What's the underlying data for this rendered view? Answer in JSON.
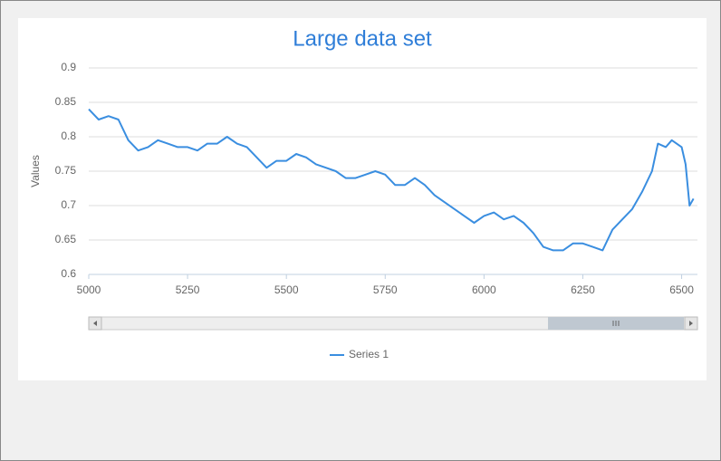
{
  "chart_data": {
    "type": "line",
    "title": "Large data set",
    "y_axis_label": "Values",
    "x": [
      5000,
      5025,
      5050,
      5075,
      5100,
      5125,
      5150,
      5175,
      5200,
      5225,
      5250,
      5275,
      5300,
      5325,
      5350,
      5375,
      5400,
      5425,
      5450,
      5475,
      5500,
      5525,
      5550,
      5575,
      5600,
      5625,
      5650,
      5675,
      5700,
      5725,
      5750,
      5775,
      5800,
      5825,
      5850,
      5875,
      5900,
      5925,
      5950,
      5975,
      6000,
      6025,
      6050,
      6075,
      6100,
      6125,
      6150,
      6175,
      6200,
      6225,
      6250,
      6275,
      6300,
      6325,
      6350,
      6375,
      6400,
      6425,
      6440,
      6460,
      6475,
      6500,
      6510,
      6520,
      6530
    ],
    "series": [
      {
        "name": "Series 1",
        "color": "#3a8ee0",
        "values": [
          0.84,
          0.825,
          0.83,
          0.825,
          0.795,
          0.78,
          0.785,
          0.795,
          0.79,
          0.785,
          0.785,
          0.78,
          0.79,
          0.79,
          0.8,
          0.79,
          0.785,
          0.77,
          0.755,
          0.765,
          0.765,
          0.775,
          0.77,
          0.76,
          0.755,
          0.75,
          0.74,
          0.74,
          0.745,
          0.75,
          0.745,
          0.73,
          0.73,
          0.74,
          0.73,
          0.715,
          0.705,
          0.695,
          0.685,
          0.675,
          0.685,
          0.69,
          0.68,
          0.685,
          0.675,
          0.66,
          0.64,
          0.635,
          0.635,
          0.645,
          0.645,
          0.64,
          0.635,
          0.665,
          0.68,
          0.695,
          0.72,
          0.75,
          0.79,
          0.785,
          0.795,
          0.785,
          0.76,
          0.7,
          0.71
        ]
      }
    ],
    "xlim": [
      5000,
      6540
    ],
    "xticks": [
      5000,
      5250,
      5500,
      5750,
      6000,
      6250,
      6500
    ],
    "ylim": [
      0.6,
      0.9
    ],
    "yticks": [
      0.6,
      0.65,
      0.7,
      0.75,
      0.8,
      0.85,
      0.9
    ],
    "grid": true
  }
}
